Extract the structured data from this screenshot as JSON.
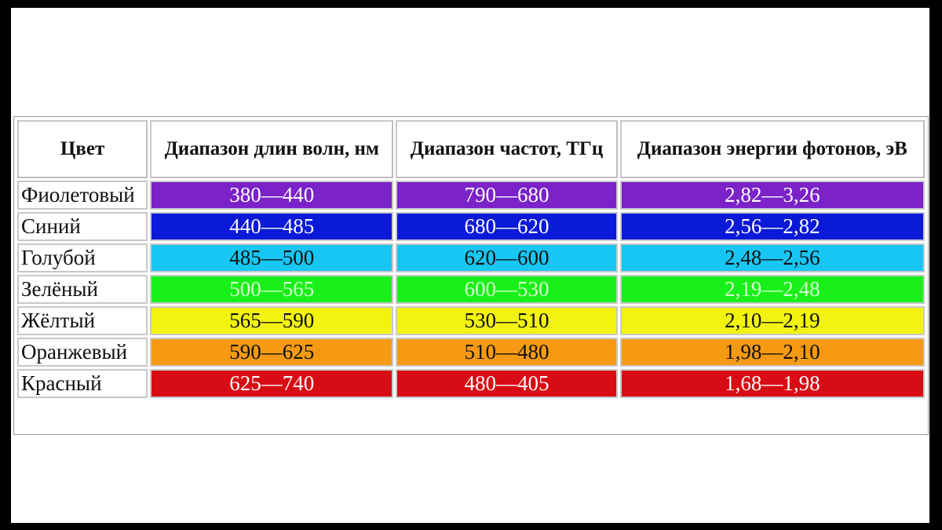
{
  "table": {
    "headers": {
      "color": "Цвет",
      "wavelength": "Диапазон длин волн, нм",
      "frequency": "Диапазон частот, ТГц",
      "energy": "Диапазон энергии фотонов, эВ"
    },
    "rows": [
      {
        "name": "Фиолетовый",
        "wavelength": "380—440",
        "frequency": "790—680",
        "energy": "2,82—3,26",
        "bg": "#7b22c8",
        "text_style": "light"
      },
      {
        "name": "Синий",
        "wavelength": "440—485",
        "frequency": "680—620",
        "energy": "2,56—2,82",
        "bg": "#0b19d8",
        "text_style": "light"
      },
      {
        "name": "Голубой",
        "wavelength": "485—500",
        "frequency": "620—600",
        "energy": "2,48—2,56",
        "bg": "#17c6f2",
        "text_style": "dark"
      },
      {
        "name": "Зелёный",
        "wavelength": "500—565",
        "frequency": "600—530",
        "energy": "2,19—2,48",
        "bg": "#19f019",
        "text_style": "greenish"
      },
      {
        "name": "Жёлтый",
        "wavelength": "565—590",
        "frequency": "530—510",
        "energy": "2,10—2,19",
        "bg": "#f2f410",
        "text_style": "dark"
      },
      {
        "name": "Оранжевый",
        "wavelength": "590—625",
        "frequency": "510—480",
        "energy": "1,98—2,10",
        "bg": "#f59a12",
        "text_style": "dark"
      },
      {
        "name": "Красный",
        "wavelength": "625—740",
        "frequency": "480—405",
        "energy": "1,68—1,98",
        "bg": "#d80c14",
        "text_style": "light"
      }
    ]
  }
}
